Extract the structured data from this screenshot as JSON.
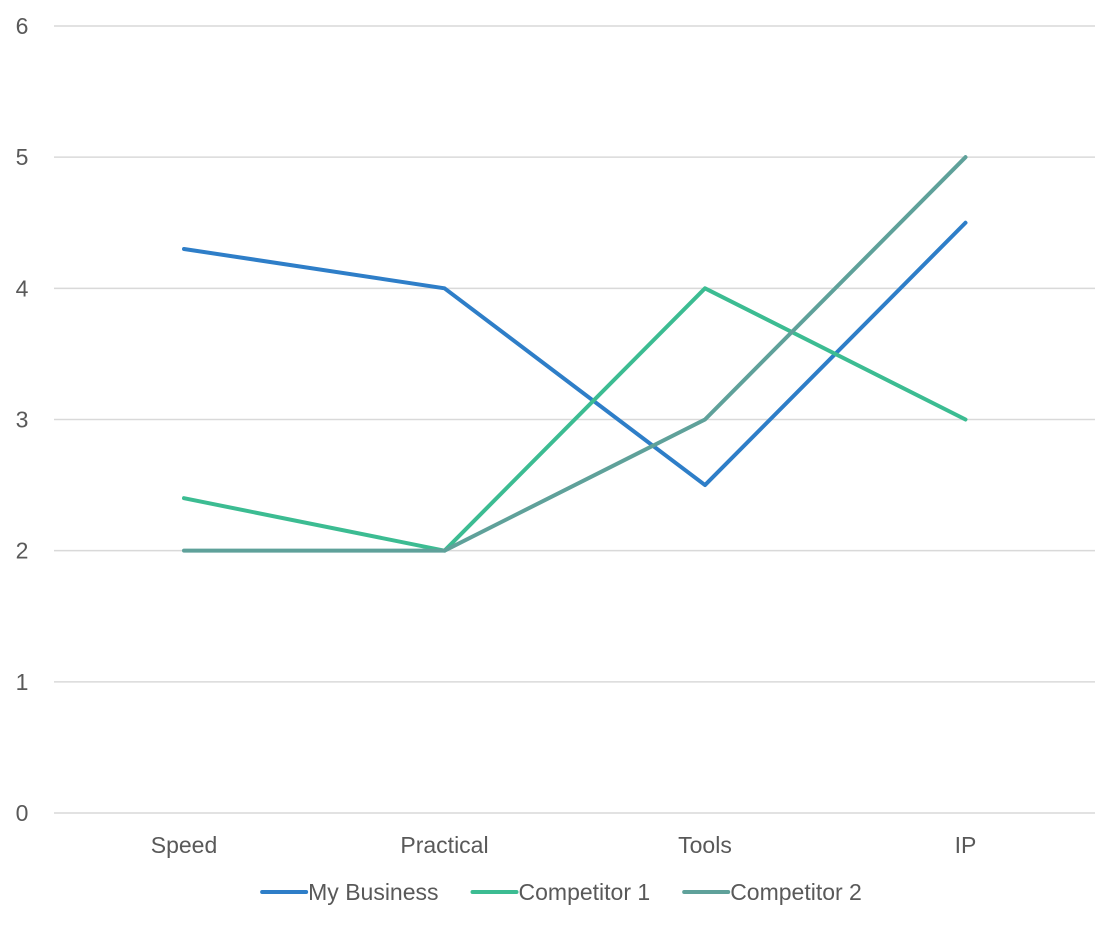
{
  "chart_data": {
    "type": "line",
    "categories": [
      "Speed",
      "Practical",
      "Tools",
      "IP"
    ],
    "series": [
      {
        "name": "My Business",
        "values": [
          4.3,
          4.0,
          2.5,
          4.5
        ],
        "color": "#2E7EC8"
      },
      {
        "name": "Competitor 1",
        "values": [
          2.4,
          2.0,
          4.0,
          3.0
        ],
        "color": "#3CBC92"
      },
      {
        "name": "Competitor 2",
        "values": [
          2.0,
          2.0,
          3.0,
          5.0
        ],
        "color": "#5FA19A"
      }
    ],
    "ylim": [
      0,
      6
    ],
    "yticks": [
      0,
      1,
      2,
      3,
      4,
      5,
      6
    ],
    "grid": true,
    "legend_position": "bottom",
    "gridline_color": "#D9D9D9",
    "text_color": "#595959"
  }
}
